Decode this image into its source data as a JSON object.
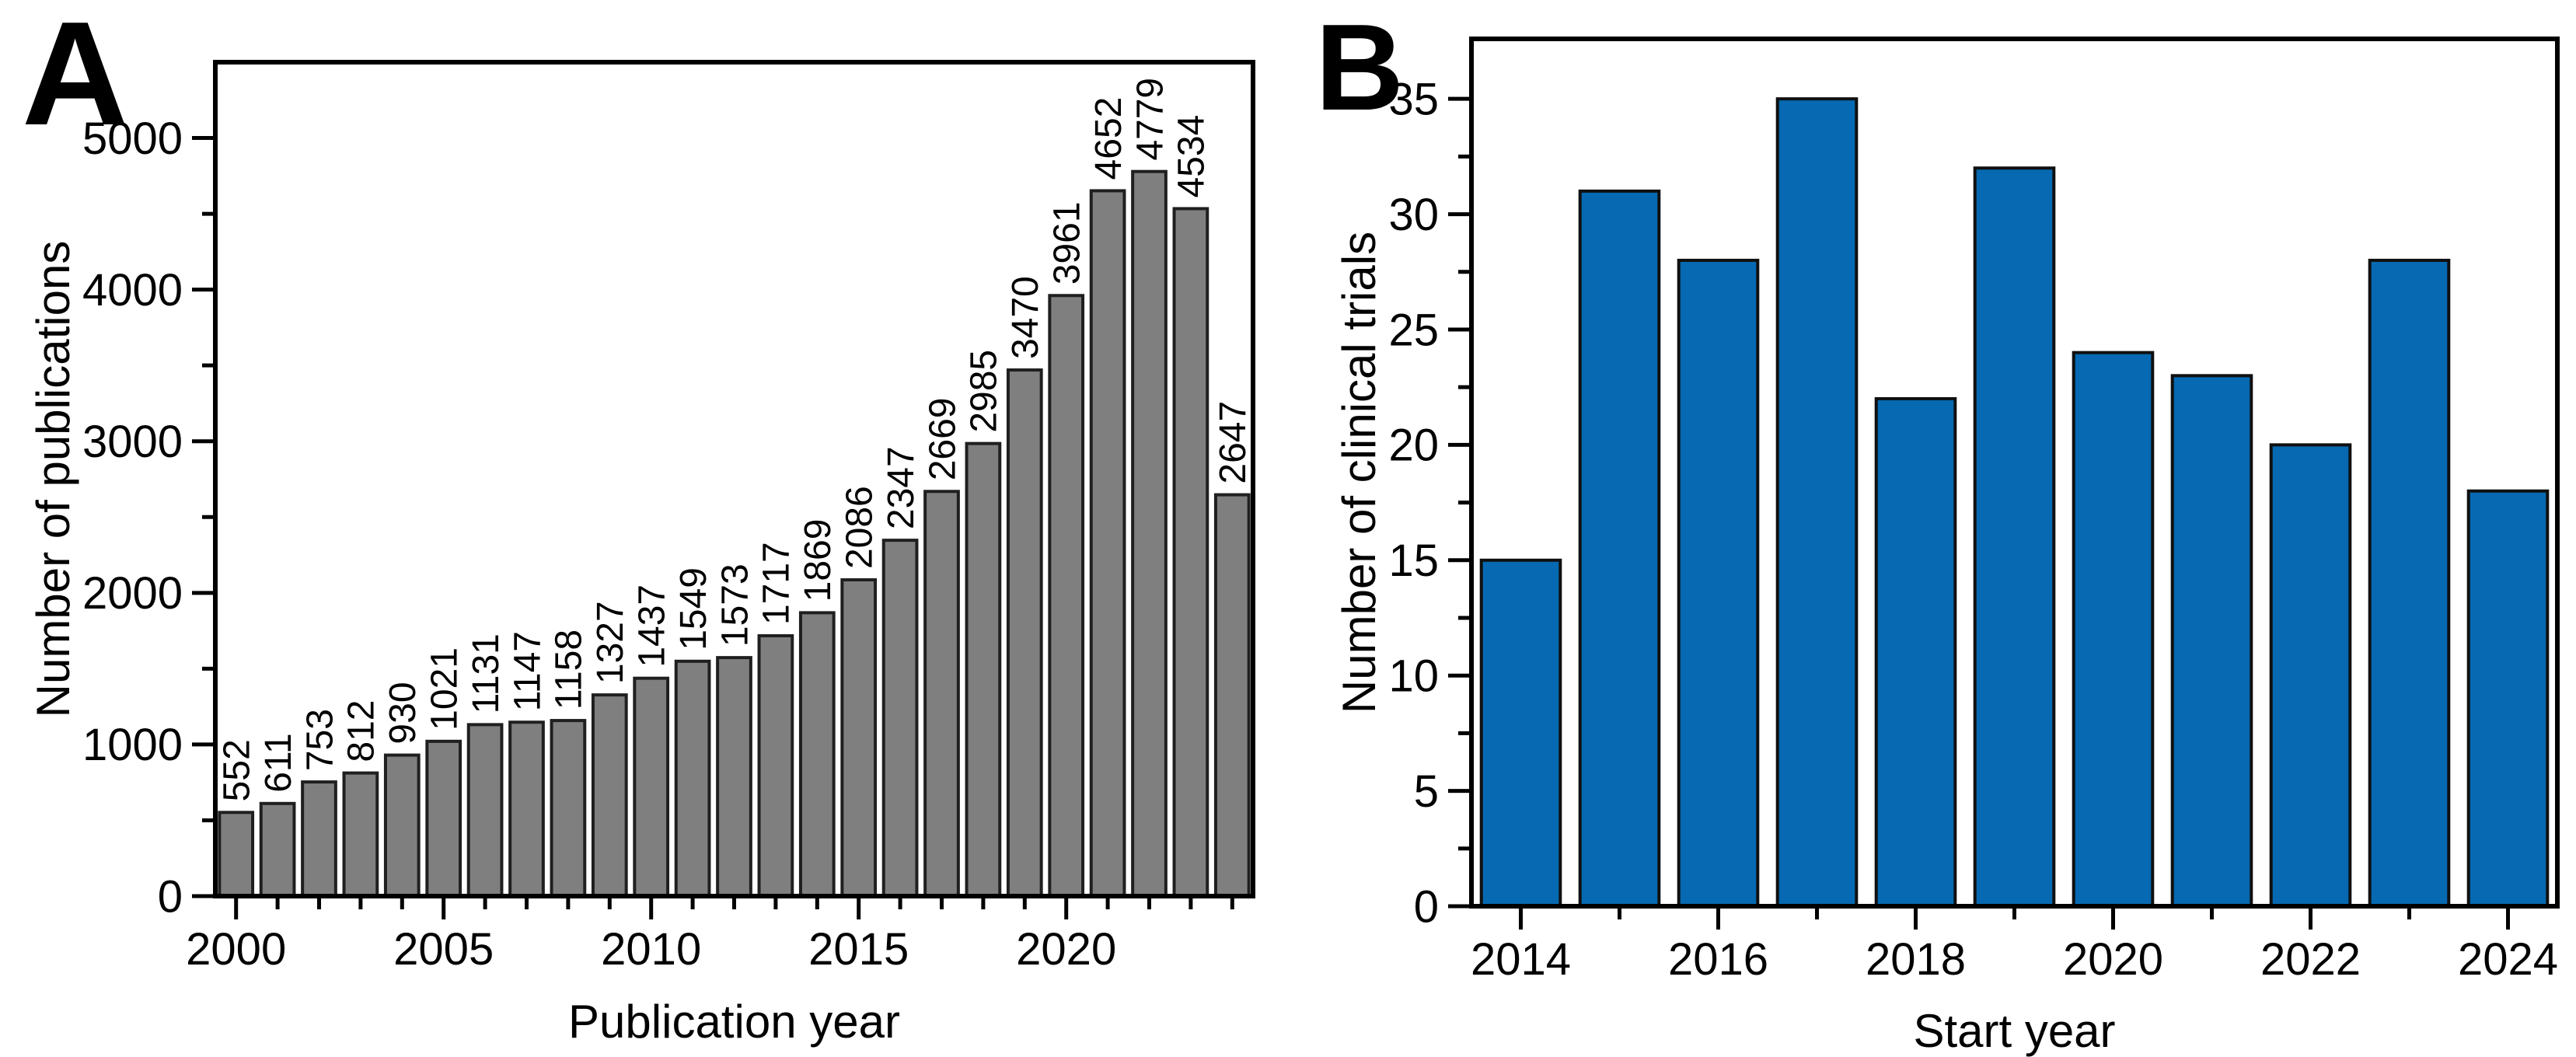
{
  "chart_data": [
    {
      "type": "bar",
      "panel_label": "A",
      "title": "",
      "xlabel": "Publication year",
      "ylabel": "Number of publications",
      "categories": [
        2000,
        2001,
        2002,
        2003,
        2004,
        2005,
        2006,
        2007,
        2008,
        2009,
        2010,
        2011,
        2012,
        2013,
        2014,
        2015,
        2016,
        2017,
        2018,
        2019,
        2020,
        2021,
        2022,
        2023,
        2024
      ],
      "values": [
        552,
        611,
        753,
        812,
        930,
        1021,
        1131,
        1147,
        1158,
        1327,
        1437,
        1549,
        1573,
        1717,
        1869,
        2086,
        2347,
        2669,
        2985,
        3470,
        3961,
        4652,
        4779,
        4534,
        2647
      ],
      "bar_value_labels": true,
      "bar_label_rotation": -90,
      "yticks": [
        0,
        1000,
        2000,
        3000,
        4000,
        5000
      ],
      "xtick_labels": [
        2000,
        2005,
        2010,
        2015,
        2020
      ],
      "ylim": [
        0,
        5500
      ],
      "grid": false,
      "legend": "none",
      "bar_color": "#7f7f7f",
      "bar_edge_color": "#1f1f1f"
    },
    {
      "type": "bar",
      "panel_label": "B",
      "title": "",
      "xlabel": "Start year",
      "ylabel": "Number of clinical trials",
      "categories": [
        2014,
        2015,
        2016,
        2017,
        2018,
        2019,
        2020,
        2021,
        2022,
        2023,
        2024
      ],
      "values": [
        15,
        31,
        28,
        35,
        22,
        32,
        24,
        23,
        20,
        28,
        18
      ],
      "bar_value_labels": false,
      "yticks": [
        0,
        5,
        10,
        15,
        20,
        25,
        30,
        35
      ],
      "xtick_labels": [
        2014,
        2016,
        2018,
        2020,
        2022,
        2024
      ],
      "ylim": [
        0,
        37.6
      ],
      "grid": false,
      "legend": "none",
      "bar_color": "#0669b1",
      "bar_edge_color": "#101010"
    }
  ]
}
